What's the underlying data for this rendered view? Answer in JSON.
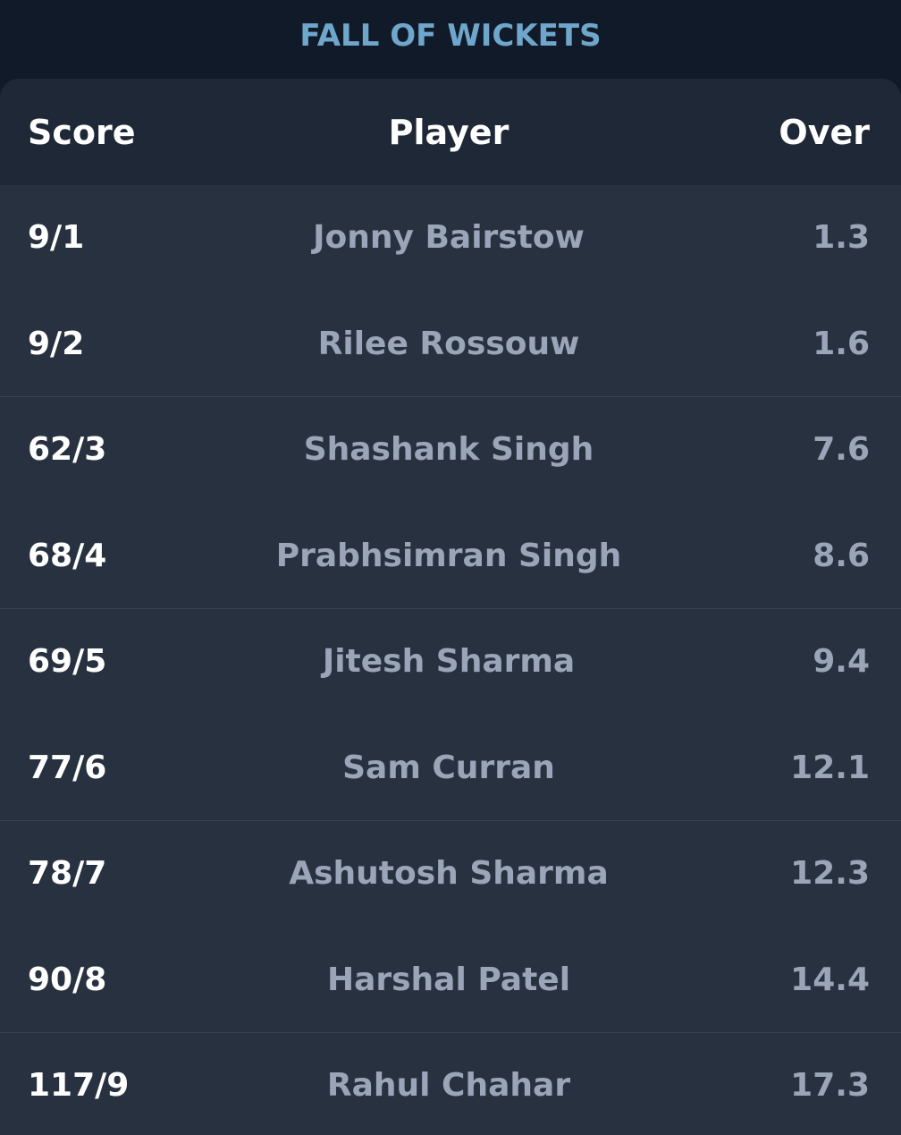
{
  "title": "FALL OF WICKETS",
  "headers": {
    "score": "Score",
    "player": "Player",
    "over": "Over"
  },
  "rows": [
    {
      "score": "9/1",
      "player": "Jonny Bairstow",
      "over": "1.3"
    },
    {
      "score": "9/2",
      "player": "Rilee Rossouw",
      "over": "1.6"
    },
    {
      "score": "62/3",
      "player": "Shashank Singh",
      "over": "7.6"
    },
    {
      "score": "68/4",
      "player": "Prabhsimran Singh",
      "over": "8.6"
    },
    {
      "score": "69/5",
      "player": "Jitesh Sharma",
      "over": "9.4"
    },
    {
      "score": "77/6",
      "player": "Sam Curran",
      "over": "12.1"
    },
    {
      "score": "78/7",
      "player": "Ashutosh Sharma",
      "over": "12.3"
    },
    {
      "score": "90/8",
      "player": "Harshal Patel",
      "over": "14.4"
    },
    {
      "score": "117/9",
      "player": "Rahul Chahar",
      "over": "17.3"
    }
  ],
  "colors": {
    "background": "#111a28",
    "card": "#283140",
    "header_row": "#1f2836",
    "title": "#6fa6cb",
    "primary_text": "#ffffff",
    "secondary_text": "#9aa5b8"
  }
}
